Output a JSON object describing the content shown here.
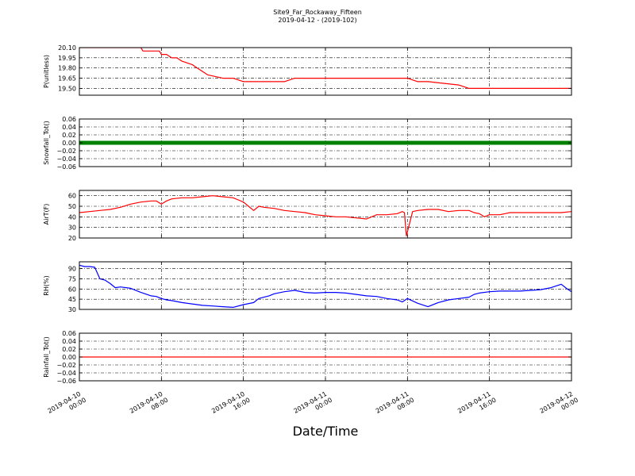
{
  "chart_data": {
    "type": "line",
    "title": "Site9_Far_Rockaway_Fifteen",
    "subtitle": "2019-04-12 - (2019-102)",
    "xlabel": "Date/Time",
    "x_ticks": [
      [
        "2019-04-10",
        "00:00"
      ],
      [
        "2019-04-10",
        "08:00"
      ],
      [
        "2019-04-10",
        "16:00"
      ],
      [
        "2019-04-11",
        "00:00"
      ],
      [
        "2019-04-11",
        "08:00"
      ],
      [
        "2019-04-11",
        "16:00"
      ],
      [
        "2019-04-12",
        "00:00"
      ]
    ],
    "xlim_hours": [
      0,
      48
    ],
    "grid": true,
    "panels": [
      {
        "ylabel": "P(unitless)",
        "ylim": [
          19.4,
          20.1
        ],
        "yticks": [
          "20.10",
          "19.95",
          "19.80",
          "19.65",
          "19.50"
        ],
        "ytick_values": [
          20.1,
          19.95,
          19.8,
          19.65,
          19.5
        ],
        "color": "#ff0000",
        "line_style": "line",
        "series": [
          {
            "x": [
              0,
              6,
              6.2,
              7.8,
              8,
              8.5,
              9,
              9.5,
              10,
              11,
              11.5,
              12,
              12.5,
              14,
              15,
              16,
              20,
              21,
              28,
              32,
              33,
              34,
              37,
              38,
              42,
              48
            ],
            "y": [
              20.1,
              20.1,
              20.05,
              20.05,
              20.0,
              20.0,
              19.95,
              19.95,
              19.9,
              19.85,
              19.8,
              19.75,
              19.7,
              19.65,
              19.65,
              19.6,
              19.6,
              19.65,
              19.65,
              19.65,
              19.6,
              19.6,
              19.55,
              19.5,
              19.5,
              19.5
            ]
          }
        ]
      },
      {
        "ylabel": "Snowfall_Tot()",
        "ylim": [
          -0.06,
          0.06
        ],
        "yticks": [
          "0.06",
          "0.04",
          "0.02",
          "0.00",
          "−0.02",
          "−0.04",
          "−0.06"
        ],
        "ytick_values": [
          0.06,
          0.04,
          0.02,
          0.0,
          -0.02,
          -0.04,
          -0.06
        ],
        "color": "#008000",
        "line_style": "markers",
        "series": [
          {
            "x": [
              0,
              48
            ],
            "y": [
              0,
              0
            ]
          }
        ]
      },
      {
        "ylabel": "AirT(F)",
        "ylim": [
          20,
          65
        ],
        "yticks": [
          "60",
          "50",
          "40",
          "30",
          "20"
        ],
        "ytick_values": [
          60,
          50,
          40,
          30,
          20
        ],
        "color": "#ff0000",
        "line_style": "line",
        "series": [
          {
            "x": [
              0,
              1,
              2,
              3,
              4,
              5,
              6,
              7,
              7.5,
              8,
              8.5,
              9,
              10,
              11,
              12,
              13,
              14,
              15,
              15.5,
              16,
              16.5,
              17,
              17.5,
              18,
              19,
              20,
              21,
              22,
              23,
              24,
              25,
              26,
              27,
              28,
              29,
              30,
              31,
              31.5,
              31.7,
              31.9,
              32.5,
              33,
              34,
              35,
              36,
              37,
              38,
              38.5,
              39,
              39.5,
              40,
              41,
              42,
              43,
              44,
              45,
              46,
              47,
              48
            ],
            "y": [
              44,
              45,
              46,
              47,
              49,
              52,
              54,
              55,
              55,
              52,
              55,
              57,
              58,
              58,
              59,
              60,
              59,
              58,
              56,
              54,
              50,
              46,
              50,
              49,
              48,
              46,
              45,
              44,
              42,
              41,
              40,
              40,
              39,
              38,
              42,
              42,
              43,
              45,
              44,
              22,
              45,
              46,
              47,
              47,
              45,
              46,
              46,
              44,
              43,
              40,
              42,
              42,
              44,
              44,
              44,
              44,
              44,
              44,
              45
            ]
          }
        ]
      },
      {
        "ylabel": "RH(%)",
        "ylim": [
          30,
          100
        ],
        "yticks": [
          "90",
          "75",
          "60",
          "45",
          "30"
        ],
        "ytick_values": [
          90,
          75,
          60,
          45,
          30
        ],
        "color": "#0000ff",
        "line_style": "line",
        "series": [
          {
            "x": [
              0,
              0.5,
              1,
              1.5,
              2,
              2.5,
              3,
              3.5,
              4,
              5,
              6,
              7,
              7.5,
              8,
              8.5,
              9,
              10,
              11,
              12,
              13,
              14,
              15,
              16,
              17,
              17.5,
              18,
              18.5,
              19,
              20,
              21,
              22,
              23,
              24,
              25,
              26,
              27,
              28,
              29,
              30,
              31,
              31.5,
              32,
              33,
              34,
              35,
              36,
              37,
              38,
              38.5,
              39,
              40,
              41,
              42,
              43,
              44,
              45,
              46,
              47,
              47.5,
              48
            ],
            "y": [
              95,
              93,
              93,
              92,
              75,
              73,
              68,
              62,
              63,
              61,
              55,
              50,
              49,
              46,
              44,
              43,
              40,
              38,
              36,
              35,
              34,
              33,
              37,
              40,
              46,
              48,
              50,
              53,
              56,
              58,
              55,
              54,
              55,
              55,
              54,
              52,
              50,
              49,
              46,
              44,
              41,
              46,
              39,
              34,
              40,
              44,
              46,
              48,
              52,
              54,
              56,
              57,
              57,
              57,
              58,
              59,
              62,
              67,
              61,
              56
            ]
          }
        ]
      },
      {
        "ylabel": "Rainfall_Tot()",
        "ylim": [
          -0.06,
          0.06
        ],
        "yticks": [
          "0.06",
          "0.04",
          "0.02",
          "0.00",
          "−0.02",
          "−0.04",
          "−0.06"
        ],
        "ytick_values": [
          0.06,
          0.04,
          0.02,
          0.0,
          -0.02,
          -0.04,
          -0.06
        ],
        "color": "#ff0000",
        "line_style": "line",
        "series": [
          {
            "x": [
              0,
              48
            ],
            "y": [
              0,
              0
            ]
          }
        ]
      }
    ]
  }
}
